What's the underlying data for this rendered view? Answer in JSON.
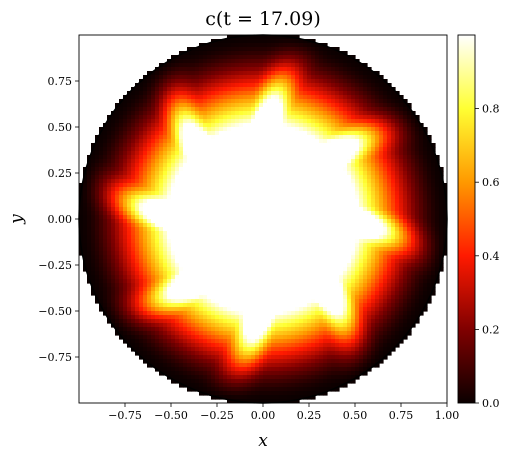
{
  "chart_data": {
    "type": "heatmap",
    "title": "c(t = 17.09)",
    "xlabel": "x",
    "ylabel": "y",
    "xlim": [
      -1.0,
      1.0
    ],
    "ylim": [
      -1.0,
      1.0
    ],
    "xticks": [
      -0.75,
      -0.5,
      -0.25,
      0.0,
      0.25,
      0.5,
      0.75,
      1.0
    ],
    "xtick_labels": [
      "−0.75",
      "−0.50",
      "−0.25",
      "0.00",
      "0.25",
      "0.50",
      "0.75",
      "1.00"
    ],
    "yticks": [
      0.75,
      0.5,
      0.25,
      0.0,
      -0.25,
      -0.5,
      -0.75
    ],
    "ytick_labels": [
      "0.75",
      "0.50",
      "0.25",
      "0.00",
      "−0.25",
      "−0.50",
      "−0.75"
    ],
    "domain": {
      "shape": "annulus",
      "inner_radius": 0.52,
      "outer_radius": 1.0
    },
    "field": {
      "description_of_pattern": "concentration peaks near inner ring, 8 arms extending outward, dark near outer wall",
      "arms": 8,
      "min": 0.0,
      "max": 1.0
    },
    "colorbar": {
      "colormap": "hot",
      "range": [
        0.0,
        1.0
      ],
      "ticks": [
        0.0,
        0.2,
        0.4,
        0.6,
        0.8
      ],
      "tick_labels": [
        "0.0",
        "0.2",
        "0.4",
        "0.6",
        "0.8"
      ],
      "colors": [
        "#0b0000",
        "#800000",
        "#ff1a00",
        "#ff9900",
        "#ffff33",
        "#ffffff"
      ]
    },
    "grid": false
  }
}
